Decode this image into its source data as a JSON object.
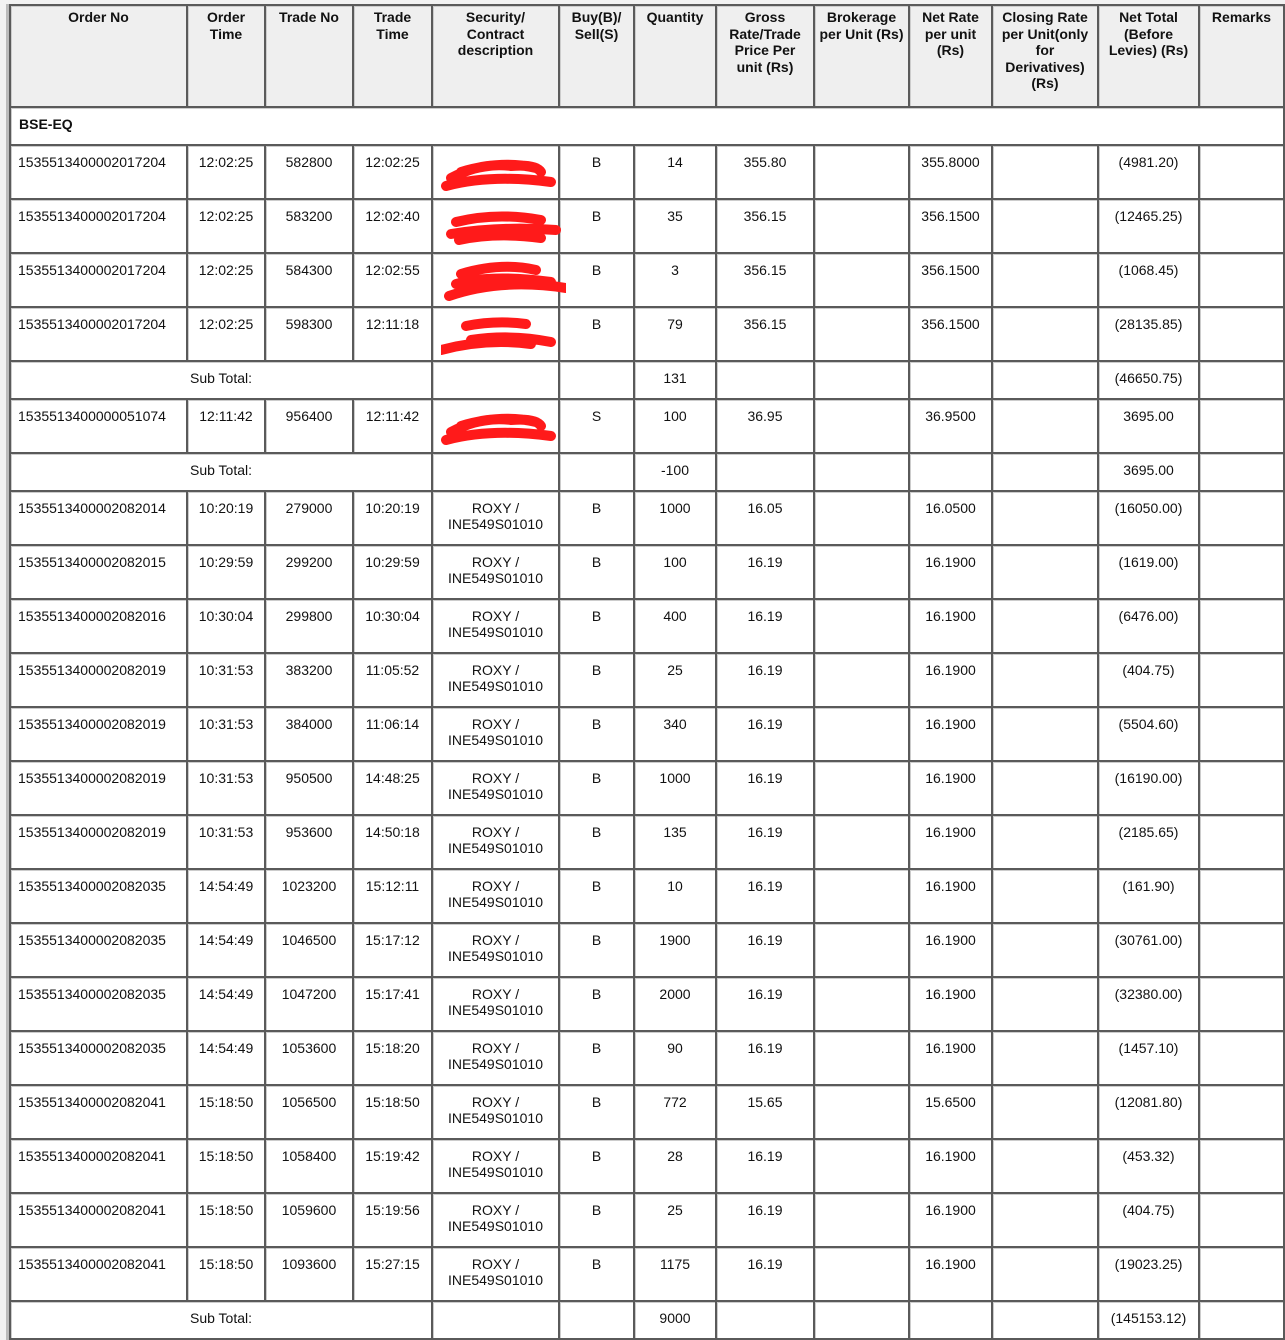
{
  "columns": [
    "Order No",
    "Order Time",
    "Trade No",
    "Trade Time",
    "Security/ Contract description",
    "Buy(B)/ Sell(S)",
    "Quantity",
    "Gross Rate/Trade Price Per unit (Rs)",
    "Brokerage per Unit (Rs)",
    "Net Rate per unit (Rs)",
    "Closing Rate per Unit(only for Derivatives) (Rs)",
    "Net Total (Before Levies) (Rs)",
    "Remarks"
  ],
  "segment": "BSE-EQ",
  "subtotal_label": "Sub Total:",
  "redaction_color": "#ff1a1a",
  "rows": [
    {
      "type": "trade",
      "order_no": "1535513400002017204",
      "order_time": "12:02:25",
      "trade_no": "582800",
      "trade_time": "12:02:25",
      "security": "",
      "redacted": true,
      "bs": "B",
      "qty": "14",
      "gross": "355.80",
      "brokerage": "",
      "net_rate": "355.8000",
      "closing": "",
      "net_total": "(4981.20)",
      "remarks": ""
    },
    {
      "type": "trade",
      "order_no": "1535513400002017204",
      "order_time": "12:02:25",
      "trade_no": "583200",
      "trade_time": "12:02:40",
      "security": "",
      "redacted": true,
      "bs": "B",
      "qty": "35",
      "gross": "356.15",
      "brokerage": "",
      "net_rate": "356.1500",
      "closing": "",
      "net_total": "(12465.25)",
      "remarks": ""
    },
    {
      "type": "trade",
      "order_no": "1535513400002017204",
      "order_time": "12:02:25",
      "trade_no": "584300",
      "trade_time": "12:02:55",
      "security": "",
      "redacted": true,
      "bs": "B",
      "qty": "3",
      "gross": "356.15",
      "brokerage": "",
      "net_rate": "356.1500",
      "closing": "",
      "net_total": "(1068.45)",
      "remarks": ""
    },
    {
      "type": "trade",
      "order_no": "1535513400002017204",
      "order_time": "12:02:25",
      "trade_no": "598300",
      "trade_time": "12:11:18",
      "security": "",
      "redacted": true,
      "bs": "B",
      "qty": "79",
      "gross": "356.15",
      "brokerage": "",
      "net_rate": "356.1500",
      "closing": "",
      "net_total": "(28135.85)",
      "remarks": ""
    },
    {
      "type": "subtotal",
      "qty": "131",
      "net_total": "(46650.75)"
    },
    {
      "type": "trade",
      "order_no": "1535513400000051074",
      "order_time": "12:11:42",
      "trade_no": "956400",
      "trade_time": "12:11:42",
      "security": "",
      "redacted": true,
      "bs": "S",
      "qty": "100",
      "gross": "36.95",
      "brokerage": "",
      "net_rate": "36.9500",
      "closing": "",
      "net_total": "3695.00",
      "remarks": ""
    },
    {
      "type": "subtotal",
      "qty": "-100",
      "net_total": "3695.00"
    },
    {
      "type": "trade",
      "order_no": "1535513400002082014",
      "order_time": "10:20:19",
      "trade_no": "279000",
      "trade_time": "10:20:19",
      "security": "ROXY / INE549S01010",
      "bs": "B",
      "qty": "1000",
      "gross": "16.05",
      "brokerage": "",
      "net_rate": "16.0500",
      "closing": "",
      "net_total": "(16050.00)",
      "remarks": ""
    },
    {
      "type": "trade",
      "order_no": "1535513400002082015",
      "order_time": "10:29:59",
      "trade_no": "299200",
      "trade_time": "10:29:59",
      "security": "ROXY / INE549S01010",
      "bs": "B",
      "qty": "100",
      "gross": "16.19",
      "brokerage": "",
      "net_rate": "16.1900",
      "closing": "",
      "net_total": "(1619.00)",
      "remarks": ""
    },
    {
      "type": "trade",
      "order_no": "1535513400002082016",
      "order_time": "10:30:04",
      "trade_no": "299800",
      "trade_time": "10:30:04",
      "security": "ROXY / INE549S01010",
      "bs": "B",
      "qty": "400",
      "gross": "16.19",
      "brokerage": "",
      "net_rate": "16.1900",
      "closing": "",
      "net_total": "(6476.00)",
      "remarks": ""
    },
    {
      "type": "trade",
      "order_no": "1535513400002082019",
      "order_time": "10:31:53",
      "trade_no": "383200",
      "trade_time": "11:05:52",
      "security": "ROXY / INE549S01010",
      "bs": "B",
      "qty": "25",
      "gross": "16.19",
      "brokerage": "",
      "net_rate": "16.1900",
      "closing": "",
      "net_total": "(404.75)",
      "remarks": ""
    },
    {
      "type": "trade",
      "order_no": "1535513400002082019",
      "order_time": "10:31:53",
      "trade_no": "384000",
      "trade_time": "11:06:14",
      "security": "ROXY / INE549S01010",
      "bs": "B",
      "qty": "340",
      "gross": "16.19",
      "brokerage": "",
      "net_rate": "16.1900",
      "closing": "",
      "net_total": "(5504.60)",
      "remarks": ""
    },
    {
      "type": "trade",
      "order_no": "1535513400002082019",
      "order_time": "10:31:53",
      "trade_no": "950500",
      "trade_time": "14:48:25",
      "security": "ROXY / INE549S01010",
      "bs": "B",
      "qty": "1000",
      "gross": "16.19",
      "brokerage": "",
      "net_rate": "16.1900",
      "closing": "",
      "net_total": "(16190.00)",
      "remarks": ""
    },
    {
      "type": "trade",
      "order_no": "1535513400002082019",
      "order_time": "10:31:53",
      "trade_no": "953600",
      "trade_time": "14:50:18",
      "security": "ROXY / INE549S01010",
      "bs": "B",
      "qty": "135",
      "gross": "16.19",
      "brokerage": "",
      "net_rate": "16.1900",
      "closing": "",
      "net_total": "(2185.65)",
      "remarks": ""
    },
    {
      "type": "trade",
      "order_no": "1535513400002082035",
      "order_time": "14:54:49",
      "trade_no": "1023200",
      "trade_time": "15:12:11",
      "security": "ROXY / INE549S01010",
      "bs": "B",
      "qty": "10",
      "gross": "16.19",
      "brokerage": "",
      "net_rate": "16.1900",
      "closing": "",
      "net_total": "(161.90)",
      "remarks": ""
    },
    {
      "type": "trade",
      "order_no": "1535513400002082035",
      "order_time": "14:54:49",
      "trade_no": "1046500",
      "trade_time": "15:17:12",
      "security": "ROXY / INE549S01010",
      "bs": "B",
      "qty": "1900",
      "gross": "16.19",
      "brokerage": "",
      "net_rate": "16.1900",
      "closing": "",
      "net_total": "(30761.00)",
      "remarks": ""
    },
    {
      "type": "trade",
      "order_no": "1535513400002082035",
      "order_time": "14:54:49",
      "trade_no": "1047200",
      "trade_time": "15:17:41",
      "security": "ROXY / INE549S01010",
      "bs": "B",
      "qty": "2000",
      "gross": "16.19",
      "brokerage": "",
      "net_rate": "16.1900",
      "closing": "",
      "net_total": "(32380.00)",
      "remarks": ""
    },
    {
      "type": "trade",
      "order_no": "1535513400002082035",
      "order_time": "14:54:49",
      "trade_no": "1053600",
      "trade_time": "15:18:20",
      "security": "ROXY / INE549S01010",
      "bs": "B",
      "qty": "90",
      "gross": "16.19",
      "brokerage": "",
      "net_rate": "16.1900",
      "closing": "",
      "net_total": "(1457.10)",
      "remarks": ""
    },
    {
      "type": "trade",
      "order_no": "1535513400002082041",
      "order_time": "15:18:50",
      "trade_no": "1056500",
      "trade_time": "15:18:50",
      "security": "ROXY / INE549S01010",
      "bs": "B",
      "qty": "772",
      "gross": "15.65",
      "brokerage": "",
      "net_rate": "15.6500",
      "closing": "",
      "net_total": "(12081.80)",
      "remarks": ""
    },
    {
      "type": "trade",
      "order_no": "1535513400002082041",
      "order_time": "15:18:50",
      "trade_no": "1058400",
      "trade_time": "15:19:42",
      "security": "ROXY / INE549S01010",
      "bs": "B",
      "qty": "28",
      "gross": "16.19",
      "brokerage": "",
      "net_rate": "16.1900",
      "closing": "",
      "net_total": "(453.32)",
      "remarks": ""
    },
    {
      "type": "trade",
      "order_no": "1535513400002082041",
      "order_time": "15:18:50",
      "trade_no": "1059600",
      "trade_time": "15:19:56",
      "security": "ROXY / INE549S01010",
      "bs": "B",
      "qty": "25",
      "gross": "16.19",
      "brokerage": "",
      "net_rate": "16.1900",
      "closing": "",
      "net_total": "(404.75)",
      "remarks": ""
    },
    {
      "type": "trade",
      "order_no": "1535513400002082041",
      "order_time": "15:18:50",
      "trade_no": "1093600",
      "trade_time": "15:27:15",
      "security": "ROXY / INE549S01010",
      "bs": "B",
      "qty": "1175",
      "gross": "16.19",
      "brokerage": "",
      "net_rate": "16.1900",
      "closing": "",
      "net_total": "(19023.25)",
      "remarks": ""
    },
    {
      "type": "subtotal",
      "qty": "9000",
      "net_total": "(145153.12)"
    }
  ]
}
